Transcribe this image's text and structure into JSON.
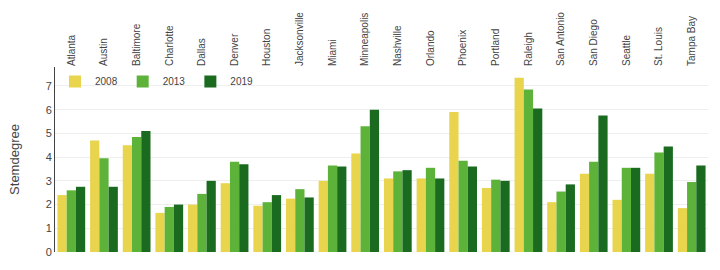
{
  "chart_data": {
    "type": "bar",
    "categories": [
      "Atlanta",
      "Austin",
      "Baltimore",
      "Charlotte",
      "Dallas",
      "Denver",
      "Houston",
      "Jacksonville",
      "Miami",
      "Minneapolis",
      "Nashville",
      "Orlando",
      "Phoenix",
      "Portland",
      "Raleigh",
      "San Antonio",
      "San Diego",
      "Seattle",
      "St. Louis",
      "Tampa Bay"
    ],
    "series": [
      {
        "name": "2008",
        "color": "#e8d44d",
        "values": [
          2.4,
          4.7,
          4.5,
          1.65,
          2.0,
          2.9,
          1.95,
          2.25,
          3.0,
          4.15,
          3.1,
          3.1,
          5.9,
          2.7,
          7.35,
          2.1,
          3.3,
          2.2,
          3.3,
          1.85
        ]
      },
      {
        "name": "2013",
        "color": "#5db33a",
        "values": [
          2.6,
          3.95,
          4.85,
          1.9,
          2.45,
          3.8,
          2.1,
          2.65,
          3.65,
          5.3,
          3.4,
          3.55,
          3.85,
          3.05,
          6.85,
          2.55,
          3.8,
          3.55,
          4.2,
          2.95
        ]
      },
      {
        "name": "2019",
        "color": "#1a6b20",
        "values": [
          2.75,
          2.75,
          5.1,
          2.0,
          3.0,
          3.7,
          2.4,
          2.3,
          3.6,
          6.0,
          3.45,
          3.1,
          3.6,
          3.0,
          6.05,
          2.85,
          5.75,
          3.55,
          4.45,
          3.65
        ]
      }
    ],
    "ylabel": "Stemdegree",
    "ylim": [
      0,
      7.8
    ],
    "yticks": [
      0,
      1,
      2,
      3,
      4,
      5,
      6,
      7
    ],
    "grid": true,
    "legend": "upper left"
  }
}
